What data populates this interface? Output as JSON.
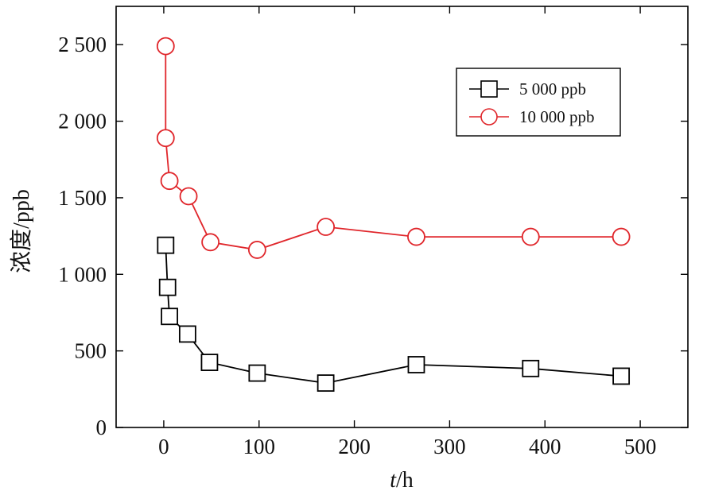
{
  "chart_data": {
    "type": "line",
    "title": "",
    "xlabel_italic": "t",
    "xlabel_rest": "/h",
    "ylabel": "浓度/ppb",
    "xlim": [
      -50,
      550
    ],
    "ylim": [
      0,
      2750
    ],
    "xticks": [
      0,
      100,
      200,
      300,
      400,
      500
    ],
    "xtick_labels": [
      "0",
      "100",
      "200",
      "300",
      "400",
      "500"
    ],
    "yticks": [
      0,
      500,
      1000,
      1500,
      2000,
      2500
    ],
    "ytick_labels": [
      "0",
      "500",
      "1 000",
      "1 500",
      "2 000",
      "2 500"
    ],
    "grid": false,
    "legend_position": "top-right",
    "series": [
      {
        "name": "5 000 ppb",
        "color": "#000000",
        "marker": "square",
        "x": [
          2,
          4,
          6,
          25,
          48,
          98,
          170,
          265,
          385,
          480
        ],
        "y": [
          1190,
          915,
          725,
          610,
          425,
          355,
          290,
          410,
          385,
          335
        ]
      },
      {
        "name": "10 000 ppb",
        "color": "#e0262b",
        "marker": "circle",
        "x": [
          2,
          2,
          6,
          26,
          49,
          98,
          170,
          265,
          385,
          480
        ],
        "y": [
          2490,
          1890,
          1610,
          1510,
          1210,
          1160,
          1310,
          1245,
          1245,
          1245
        ]
      }
    ]
  }
}
